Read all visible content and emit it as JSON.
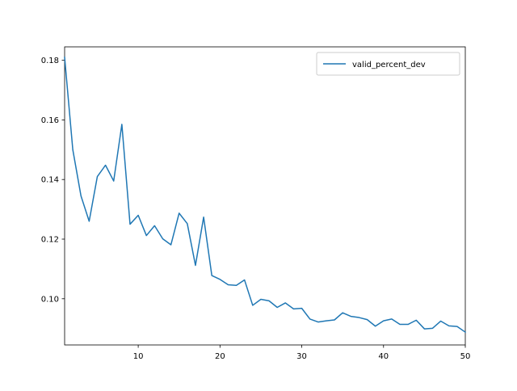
{
  "chart_data": {
    "type": "line",
    "title": "",
    "xlabel": "",
    "ylabel": "",
    "xlim": [
      1,
      50
    ],
    "ylim": [
      0.0845,
      0.1845
    ],
    "x_ticks": [
      10,
      20,
      30,
      40,
      50
    ],
    "y_ticks": [
      0.1,
      0.12,
      0.14,
      0.16,
      0.18
    ],
    "grid": false,
    "legend_position": "upper right",
    "series": [
      {
        "name": "valid_percent_dev",
        "color": "#1f77b4",
        "x": [
          1,
          2,
          3,
          4,
          5,
          6,
          7,
          8,
          9,
          10,
          11,
          12,
          13,
          14,
          15,
          16,
          17,
          18,
          19,
          20,
          21,
          22,
          23,
          24,
          25,
          26,
          27,
          28,
          29,
          30,
          31,
          32,
          33,
          34,
          35,
          36,
          37,
          38,
          39,
          40,
          41,
          42,
          43,
          44,
          45,
          46,
          47,
          48,
          49,
          50
        ],
        "values": [
          0.181,
          0.15,
          0.1345,
          0.126,
          0.141,
          0.1448,
          0.1395,
          0.1585,
          0.125,
          0.128,
          0.1212,
          0.1245,
          0.1201,
          0.1181,
          0.1287,
          0.1252,
          0.1112,
          0.1274,
          0.1078,
          0.1065,
          0.1047,
          0.1045,
          0.1063,
          0.0978,
          0.0998,
          0.0993,
          0.0971,
          0.0986,
          0.0966,
          0.0968,
          0.0932,
          0.0922,
          0.0926,
          0.0929,
          0.0953,
          0.0941,
          0.0937,
          0.093,
          0.0908,
          0.0926,
          0.0932,
          0.0914,
          0.0914,
          0.0928,
          0.0899,
          0.0901,
          0.0925,
          0.0909,
          0.0907,
          0.0888
        ]
      }
    ]
  }
}
